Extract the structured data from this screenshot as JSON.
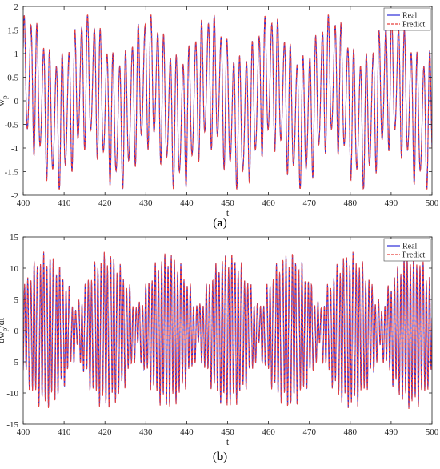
{
  "chart_data": [
    {
      "type": "line",
      "panel_label": "a",
      "xlabel": "t",
      "ylabel_main": "w",
      "ylabel_sub": "p",
      "xlim": [
        400,
        500
      ],
      "ylim": [
        -2,
        2
      ],
      "x_ticks": [
        "400",
        "410",
        "420",
        "430",
        "440",
        "450",
        "460",
        "470",
        "480",
        "490",
        "500"
      ],
      "y_ticks": [
        "-2",
        "-1.5",
        "-1",
        "-0.5",
        "0",
        "0.5",
        "1",
        "1.5",
        "2"
      ],
      "legend_position": "top-right",
      "grid": false,
      "series": [
        {
          "name": "Real",
          "color": "#2b2bd9",
          "style": "solid"
        },
        {
          "name": "Predict",
          "color": "#e8413c",
          "style": "dashed"
        }
      ],
      "signal": {
        "fast_period": 1.55,
        "slow_period": 14.9,
        "peak_amplitude": 1.75,
        "dip_value": -1.8
      }
    },
    {
      "type": "line",
      "panel_label": "b",
      "xlabel": "t",
      "ylabel_main": "dw",
      "ylabel_sub": "p",
      "ylabel_tail": "/dt",
      "xlim": [
        400,
        500
      ],
      "ylim": [
        -15,
        15
      ],
      "x_ticks": [
        "400",
        "410",
        "420",
        "430",
        "440",
        "450",
        "460",
        "470",
        "480",
        "490",
        "500"
      ],
      "y_ticks": [
        "-15",
        "-10",
        "-5",
        "0",
        "5",
        "10",
        "15"
      ],
      "legend_position": "top-right",
      "grid": false,
      "series": [
        {
          "name": "Real",
          "color": "#2b2bd9",
          "style": "solid"
        },
        {
          "name": "Predict",
          "color": "#e8413c",
          "style": "dashed"
        }
      ],
      "signal": {
        "fast_period": 0.78,
        "envelope_period": 14.9,
        "max_amplitude": 11.5,
        "min_amplitude": 3.0,
        "peak_value": 13,
        "trough_value": -14
      }
    }
  ]
}
